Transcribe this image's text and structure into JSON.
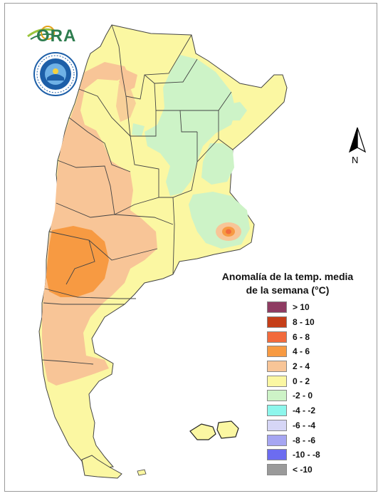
{
  "header": {
    "logo_text": "ORA"
  },
  "compass": {
    "label": "N"
  },
  "legend": {
    "title_line1": "Anomalía de la temp. media",
    "title_line2": "de la semana (°C)",
    "items": [
      {
        "label": "> 10",
        "color": "#8e3b62"
      },
      {
        "label": "8 - 10",
        "color": "#c53e18"
      },
      {
        "label": "6 - 8",
        "color": "#f26a3c"
      },
      {
        "label": "4 - 6",
        "color": "#f79a42"
      },
      {
        "label": "2 - 4",
        "color": "#f8c597"
      },
      {
        "label": "0 - 2",
        "color": "#fbf7a2"
      },
      {
        "label": "-2 - 0",
        "color": "#cdf3c7"
      },
      {
        "label": "-4 - -2",
        "color": "#8df6ec"
      },
      {
        "label": "-6 - -4",
        "color": "#d6d6f6"
      },
      {
        "label": "-8 - -6",
        "color": "#a6a6f2"
      },
      {
        "label": "-10 - -8",
        "color": "#6c6cf0"
      },
      {
        "label": "< -10",
        "color": "#9a9a9a"
      }
    ]
  }
}
